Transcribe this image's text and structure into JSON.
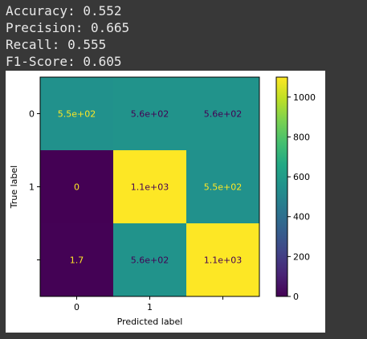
{
  "output": {
    "lines": [
      "Accuracy: 0.552",
      "Precision: 0.665",
      "Recall: 0.555",
      "F1-Score: 0.605"
    ]
  },
  "chart_data": {
    "type": "heatmap",
    "title": "",
    "xlabel": "Predicted label",
    "ylabel": "True label",
    "x_tick_labels": [
      "0",
      "1",
      ""
    ],
    "y_tick_labels": [
      "0",
      "1",
      ""
    ],
    "values": [
      [
        550,
        560,
        560
      ],
      [
        0,
        1100,
        550
      ],
      [
        1.7,
        560,
        1100
      ]
    ],
    "cell_labels": [
      [
        "5.5e+02",
        "5.6e+02",
        "5.6e+02"
      ],
      [
        "0",
        "1.1e+03",
        "5.5e+02"
      ],
      [
        "1.7",
        "5.6e+02",
        "1.1e+03"
      ]
    ],
    "colormap": "viridis",
    "vmin": 0,
    "vmax": 1100,
    "colorbar_ticks": [
      0,
      200,
      400,
      600,
      800,
      1000
    ],
    "colorbar_tick_labels": [
      "0",
      "200",
      "400",
      "600",
      "800",
      "1000"
    ],
    "grid": false,
    "legend": "colorbar-right"
  }
}
